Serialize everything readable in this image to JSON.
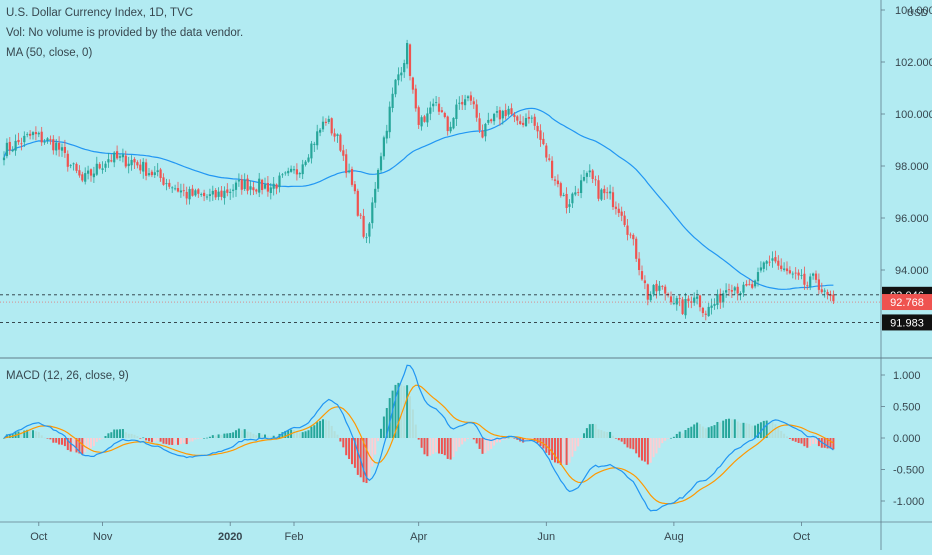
{
  "header": {
    "title": "U.S. Dollar Currency Index, 1D, TVC",
    "vol_text": "Vol: No volume is provided by the data vendor.",
    "ma_text": "MA (50, close, 0)",
    "macd_text": "MACD (12, 26, close, 9)",
    "currency": "USD"
  },
  "colors": {
    "background": "#b2ebf2",
    "up": "#26a69a",
    "down": "#ef5350",
    "ma_line": "#2196f3",
    "macd_line": "#2196f3",
    "signal_line": "#ff9800",
    "hist_up_strong": "#26a69a",
    "hist_up_weak": "#b2dfdb",
    "hist_down_strong": "#ef5350",
    "hist_down_weak": "#ffcdd2",
    "axis_text": "#37474f",
    "divider": "#607d8b"
  },
  "chart_data": [
    {
      "type": "candlestick",
      "name": "price",
      "ylim": [
        90.5,
        104.0
      ],
      "y_ticks": [
        "104.000",
        "102.000",
        "100.000",
        "98.000",
        "96.000",
        "94.000"
      ],
      "x_ticks": [
        "Oct",
        "Nov",
        "2020",
        "Feb",
        "Apr",
        "Jun",
        "Aug",
        "Oct"
      ],
      "ma_period": 50,
      "price_labels": [
        {
          "value": "93.046",
          "style": "black",
          "dashed": true
        },
        {
          "value": "92.768",
          "style": "red",
          "dashed": false
        },
        {
          "value": "91.983",
          "style": "black",
          "dashed": true
        }
      ],
      "anchors": [
        [
          0,
          98.6
        ],
        [
          10,
          99.2
        ],
        [
          18,
          98.8
        ],
        [
          27,
          97.4
        ],
        [
          36,
          98.3
        ],
        [
          44,
          98.2
        ],
        [
          53,
          97.6
        ],
        [
          63,
          96.9
        ],
        [
          72,
          96.8
        ],
        [
          82,
          97.3
        ],
        [
          92,
          97.2
        ],
        [
          101,
          97.8
        ],
        [
          111,
          99.8
        ],
        [
          116,
          98.8
        ],
        [
          121,
          96.8
        ],
        [
          125,
          95.0
        ],
        [
          129,
          98.0
        ],
        [
          135,
          101.2
        ],
        [
          139,
          102.5
        ],
        [
          142,
          100.0
        ],
        [
          145,
          99.5
        ],
        [
          149,
          100.5
        ],
        [
          153,
          99.4
        ],
        [
          157,
          100.4
        ],
        [
          161,
          100.6
        ],
        [
          165,
          99.2
        ],
        [
          169,
          99.8
        ],
        [
          174,
          100.2
        ],
        [
          177,
          99.5
        ],
        [
          181,
          100.0
        ],
        [
          184,
          99.3
        ],
        [
          189,
          97.8
        ],
        [
          194,
          96.5
        ],
        [
          198,
          97.2
        ],
        [
          202,
          97.6
        ],
        [
          205,
          97.0
        ],
        [
          209,
          96.8
        ],
        [
          213,
          96.3
        ],
        [
          218,
          94.6
        ],
        [
          222,
          93.0
        ],
        [
          226,
          93.3
        ],
        [
          230,
          93.0
        ],
        [
          234,
          92.5
        ],
        [
          238,
          93.1
        ],
        [
          242,
          92.4
        ],
        [
          246,
          92.8
        ],
        [
          250,
          93.5
        ],
        [
          255,
          93.2
        ],
        [
          259,
          93.4
        ],
        [
          262,
          94.2
        ],
        [
          265,
          94.5
        ],
        [
          268,
          94.0
        ],
        [
          271,
          93.8
        ],
        [
          274,
          93.6
        ],
        [
          277,
          93.4
        ],
        [
          280,
          93.7
        ],
        [
          283,
          93.0
        ],
        [
          286,
          92.8
        ]
      ]
    },
    {
      "type": "macd",
      "name": "macd",
      "ylim": [
        -1.3,
        1.15
      ],
      "y_ticks": [
        "1.000",
        "0.500",
        "0.000",
        "-0.500",
        "-1.000"
      ],
      "fast": 12,
      "slow": 26,
      "signal": 9
    }
  ]
}
